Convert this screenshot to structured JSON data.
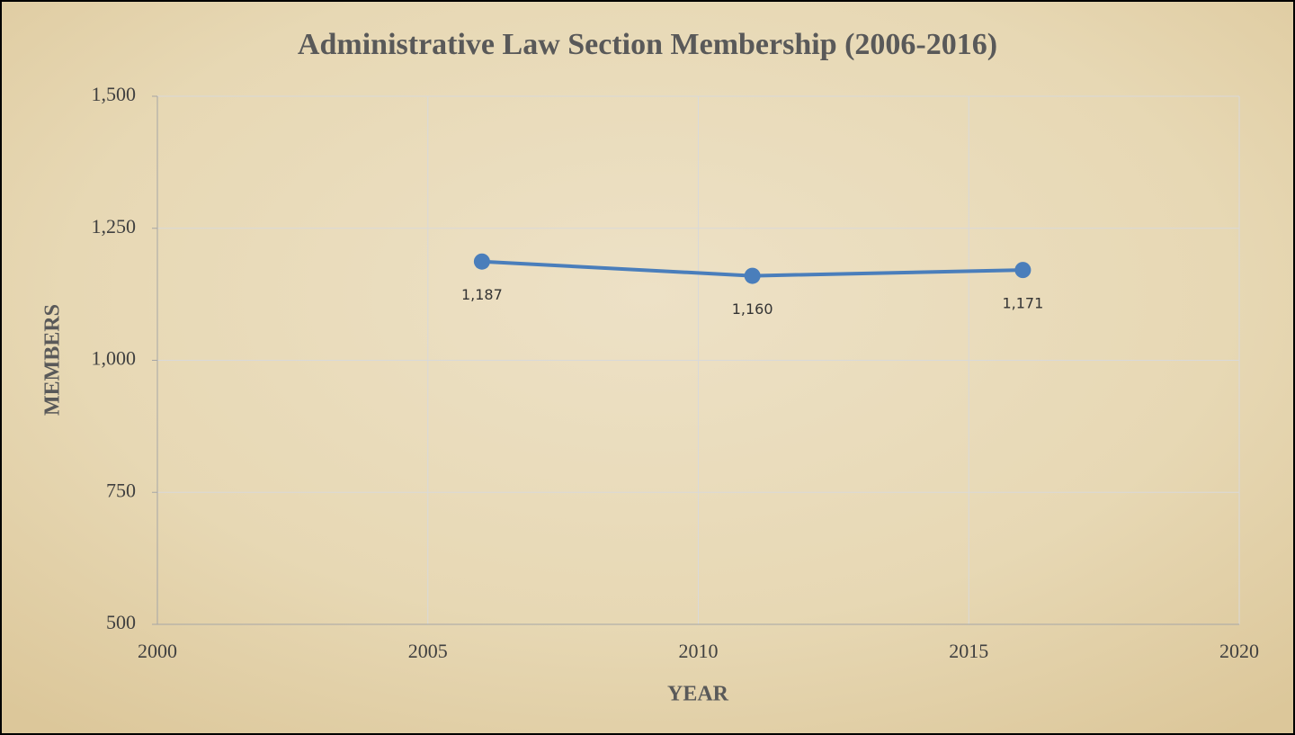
{
  "chart_data": {
    "type": "line",
    "title": "Administrative Law Section Membership (2006-2016)",
    "x_label": "YEAR",
    "y_label": "MEMBERS",
    "x": [
      2006,
      2011,
      2016
    ],
    "values": [
      1187,
      1160,
      1171
    ],
    "value_labels": [
      "1,187",
      "1,160",
      "1,171"
    ],
    "color": "#4a7ebb",
    "xlim": [
      2000,
      2020
    ],
    "xticks": [
      2000,
      2005,
      2010,
      2015,
      2020
    ],
    "ylim": [
      500,
      1500
    ],
    "yticks": [
      {
        "value": 500,
        "label": "500"
      },
      {
        "value": 750,
        "label": "750"
      },
      {
        "value": 1000,
        "label": "1,000"
      },
      {
        "value": 1250,
        "label": "1,250"
      },
      {
        "value": 1500,
        "label": "1,500"
      }
    ],
    "grid": true
  }
}
